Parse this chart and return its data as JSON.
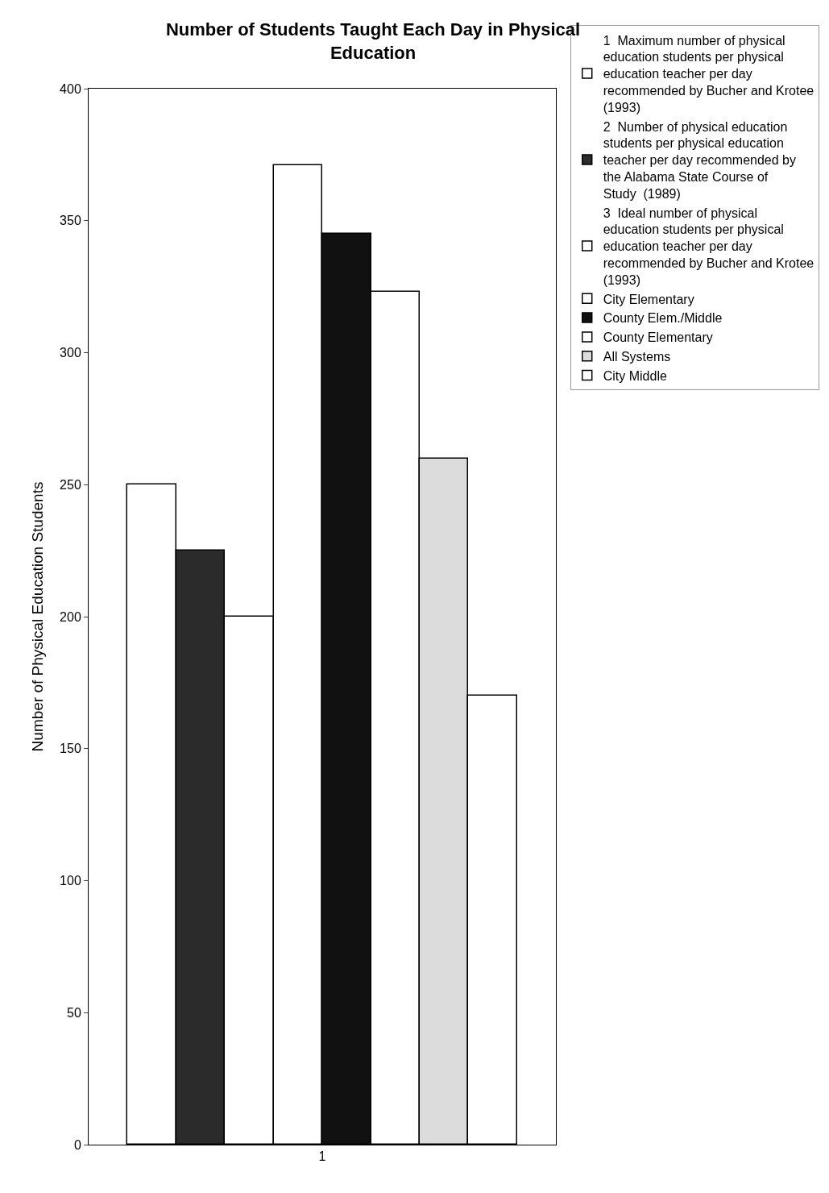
{
  "chart_data": {
    "type": "bar",
    "title": "Number of Students Taught Each Day in Physical Education",
    "ylabel": "Number of Physical Education Students",
    "categories": [
      "1"
    ],
    "series": [
      {
        "name": "1  Maximum number of physical education students per physical education teacher per day recommended by Bucher and Krotee  (1993)",
        "color": "#ffffff",
        "values": [
          250
        ]
      },
      {
        "name": "2  Number of physical education students per physical education teacher per day recommended by the Alabama State Course of Study  (1989)",
        "color": "#2b2b2b",
        "values": [
          225
        ]
      },
      {
        "name": "3  Ideal number of physical education students per physical education teacher per day recommended by Bucher and Krotee (1993)",
        "color": "#ffffff",
        "values": [
          200
        ]
      },
      {
        "name": "City Elementary",
        "color": "#ffffff",
        "values": [
          371
        ]
      },
      {
        "name": "County Elem./Middle",
        "color": "#111111",
        "values": [
          345
        ]
      },
      {
        "name": "County Elementary",
        "color": "#ffffff",
        "values": [
          323
        ]
      },
      {
        "name": "All Systems",
        "color": "#dcdcdc",
        "values": [
          260
        ]
      },
      {
        "name": "City Middle",
        "color": "#ffffff",
        "values": [
          170
        ]
      }
    ],
    "ylim": [
      0,
      400
    ],
    "yticks": [
      0,
      50,
      100,
      150,
      200,
      250,
      300,
      350,
      400
    ],
    "legend": "right"
  }
}
